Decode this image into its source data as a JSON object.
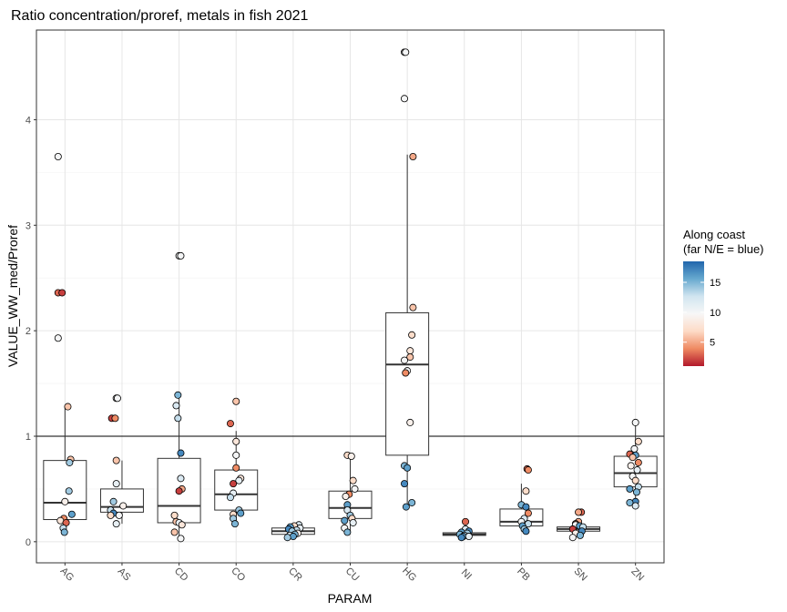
{
  "chart_data": {
    "type": "boxplot",
    "title": "Ratio concentration/proref, metals in fish 2021",
    "xlabel": "PARAM",
    "ylabel": "VALUE_WW_med/Proref",
    "ylim": [
      -0.2,
      4.85
    ],
    "y_ticks": [
      0,
      1,
      2,
      3,
      4
    ],
    "reference_line": 1,
    "grid": true,
    "categories": [
      "AG",
      "AS",
      "CD",
      "CO",
      "CR",
      "CU",
      "HG",
      "NI",
      "PB",
      "SN",
      "ZN"
    ],
    "boxes": [
      {
        "param": "AG",
        "q1": 0.21,
        "median": 0.37,
        "q3": 0.77,
        "whisker_low": 0.08,
        "whisker_high": 1.29
      },
      {
        "param": "AS",
        "q1": 0.28,
        "median": 0.33,
        "q3": 0.5,
        "whisker_low": 0.17,
        "whisker_high": 0.77
      },
      {
        "param": "CD",
        "q1": 0.18,
        "median": 0.34,
        "q3": 0.79,
        "whisker_low": 0.03,
        "whisker_high": 1.39
      },
      {
        "param": "CO",
        "q1": 0.3,
        "median": 0.45,
        "q3": 0.68,
        "whisker_low": 0.18,
        "whisker_high": 1.05
      },
      {
        "param": "CR",
        "q1": 0.07,
        "median": 0.1,
        "q3": 0.13,
        "whisker_low": 0.04,
        "whisker_high": 0.16
      },
      {
        "param": "CU",
        "q1": 0.22,
        "median": 0.32,
        "q3": 0.48,
        "whisker_low": 0.09,
        "whisker_high": 0.82
      },
      {
        "param": "HG",
        "q1": 0.82,
        "median": 1.68,
        "q3": 2.17,
        "whisker_low": 0.33,
        "whisker_high": 3.67
      },
      {
        "param": "NI",
        "q1": 0.06,
        "median": 0.07,
        "q3": 0.085,
        "whisker_low": 0.04,
        "whisker_high": 0.1
      },
      {
        "param": "PB",
        "q1": 0.15,
        "median": 0.19,
        "q3": 0.31,
        "whisker_low": 0.1,
        "whisker_high": 0.55
      },
      {
        "param": "SN",
        "q1": 0.1,
        "median": 0.12,
        "q3": 0.14,
        "whisker_low": 0.07,
        "whisker_high": 0.17
      },
      {
        "param": "ZN",
        "q1": 0.52,
        "median": 0.65,
        "q3": 0.81,
        "whisker_low": 0.34,
        "whisker_high": 1.13
      }
    ],
    "points": [
      {
        "param": "AG",
        "y": 3.65,
        "along_coast": 10,
        "jitter": -0.12
      },
      {
        "param": "AG",
        "y": 2.36,
        "along_coast": 3,
        "jitter": -0.12
      },
      {
        "param": "AG",
        "y": 2.36,
        "along_coast": 2,
        "jitter": -0.05
      },
      {
        "param": "AG",
        "y": 1.93,
        "along_coast": 10,
        "jitter": -0.12
      },
      {
        "param": "AG",
        "y": 1.28,
        "along_coast": 6,
        "jitter": 0.05
      },
      {
        "param": "AG",
        "y": 0.78,
        "along_coast": 6,
        "jitter": 0.1
      },
      {
        "param": "AG",
        "y": 0.75,
        "along_coast": 14,
        "jitter": 0.08
      },
      {
        "param": "AG",
        "y": 0.48,
        "along_coast": 14,
        "jitter": 0.07
      },
      {
        "param": "AG",
        "y": 0.38,
        "along_coast": 9,
        "jitter": 0.0
      },
      {
        "param": "AG",
        "y": 0.26,
        "along_coast": 16,
        "jitter": 0.12
      },
      {
        "param": "AG",
        "y": 0.22,
        "along_coast": 4,
        "jitter": -0.02
      },
      {
        "param": "AG",
        "y": 0.2,
        "along_coast": 8,
        "jitter": -0.08
      },
      {
        "param": "AG",
        "y": 0.18,
        "along_coast": 3,
        "jitter": 0.02
      },
      {
        "param": "AG",
        "y": 0.13,
        "along_coast": 13,
        "jitter": -0.03
      },
      {
        "param": "AG",
        "y": 0.09,
        "along_coast": 15,
        "jitter": -0.01
      },
      {
        "param": "AS",
        "y": 1.36,
        "along_coast": 10,
        "jitter": -0.1
      },
      {
        "param": "AS",
        "y": 1.36,
        "along_coast": 10,
        "jitter": -0.08
      },
      {
        "param": "AS",
        "y": 1.17,
        "along_coast": 2,
        "jitter": -0.18
      },
      {
        "param": "AS",
        "y": 1.17,
        "along_coast": 4,
        "jitter": -0.12
      },
      {
        "param": "AS",
        "y": 0.77,
        "along_coast": 6,
        "jitter": -0.1
      },
      {
        "param": "AS",
        "y": 0.55,
        "along_coast": 11,
        "jitter": -0.1
      },
      {
        "param": "AS",
        "y": 0.38,
        "along_coast": 14,
        "jitter": -0.15
      },
      {
        "param": "AS",
        "y": 0.34,
        "along_coast": 9,
        "jitter": 0.02
      },
      {
        "param": "AS",
        "y": 0.3,
        "along_coast": 13,
        "jitter": -0.2
      },
      {
        "param": "AS",
        "y": 0.27,
        "along_coast": 17,
        "jitter": -0.15
      },
      {
        "param": "AS",
        "y": 0.25,
        "along_coast": 10,
        "jitter": -0.05
      },
      {
        "param": "AS",
        "y": 0.25,
        "along_coast": 7,
        "jitter": -0.2
      },
      {
        "param": "AS",
        "y": 0.17,
        "along_coast": 11,
        "jitter": -0.1
      },
      {
        "param": "CD",
        "y": 2.71,
        "along_coast": 10,
        "jitter": 0.0
      },
      {
        "param": "CD",
        "y": 2.71,
        "along_coast": 10,
        "jitter": 0.03
      },
      {
        "param": "CD",
        "y": 1.39,
        "along_coast": 15,
        "jitter": -0.02
      },
      {
        "param": "CD",
        "y": 1.29,
        "along_coast": 12,
        "jitter": -0.05
      },
      {
        "param": "CD",
        "y": 1.17,
        "along_coast": 13,
        "jitter": -0.02
      },
      {
        "param": "CD",
        "y": 0.84,
        "along_coast": 17,
        "jitter": 0.03
      },
      {
        "param": "CD",
        "y": 0.6,
        "along_coast": 12,
        "jitter": 0.03
      },
      {
        "param": "CD",
        "y": 0.5,
        "along_coast": 5,
        "jitter": 0.05
      },
      {
        "param": "CD",
        "y": 0.48,
        "along_coast": 2,
        "jitter": 0.0
      },
      {
        "param": "CD",
        "y": 0.25,
        "along_coast": 7,
        "jitter": -0.08
      },
      {
        "param": "CD",
        "y": 0.19,
        "along_coast": 6,
        "jitter": -0.05
      },
      {
        "param": "CD",
        "y": 0.18,
        "along_coast": 11,
        "jitter": 0.0
      },
      {
        "param": "CD",
        "y": 0.16,
        "along_coast": 8,
        "jitter": 0.05
      },
      {
        "param": "CD",
        "y": 0.09,
        "along_coast": 6,
        "jitter": -0.08
      },
      {
        "param": "CD",
        "y": 0.03,
        "along_coast": 10,
        "jitter": 0.03
      },
      {
        "param": "CO",
        "y": 1.33,
        "along_coast": 6,
        "jitter": 0.0
      },
      {
        "param": "CO",
        "y": 1.12,
        "along_coast": 3,
        "jitter": -0.1
      },
      {
        "param": "CO",
        "y": 0.95,
        "along_coast": 8,
        "jitter": 0.0
      },
      {
        "param": "CO",
        "y": 0.82,
        "along_coast": 10,
        "jitter": 0.0
      },
      {
        "param": "CO",
        "y": 0.7,
        "along_coast": 4,
        "jitter": 0.0
      },
      {
        "param": "CO",
        "y": 0.6,
        "along_coast": 8,
        "jitter": 0.08
      },
      {
        "param": "CO",
        "y": 0.58,
        "along_coast": 11,
        "jitter": 0.05
      },
      {
        "param": "CO",
        "y": 0.55,
        "along_coast": 2,
        "jitter": -0.05
      },
      {
        "param": "CO",
        "y": 0.46,
        "along_coast": 11,
        "jitter": -0.05
      },
      {
        "param": "CO",
        "y": 0.42,
        "along_coast": 13,
        "jitter": -0.1
      },
      {
        "param": "CO",
        "y": 0.3,
        "along_coast": 14,
        "jitter": 0.05
      },
      {
        "param": "CO",
        "y": 0.27,
        "along_coast": 16,
        "jitter": 0.08
      },
      {
        "param": "CO",
        "y": 0.26,
        "along_coast": 7,
        "jitter": -0.05
      },
      {
        "param": "CO",
        "y": 0.22,
        "along_coast": 14,
        "jitter": -0.05
      },
      {
        "param": "CO",
        "y": 0.17,
        "along_coast": 15,
        "jitter": -0.02
      },
      {
        "param": "CR",
        "y": 0.16,
        "along_coast": 12,
        "jitter": 0.1
      },
      {
        "param": "CR",
        "y": 0.15,
        "along_coast": 7,
        "jitter": 0.02
      },
      {
        "param": "CR",
        "y": 0.14,
        "along_coast": 16,
        "jitter": -0.05
      },
      {
        "param": "CR",
        "y": 0.13,
        "along_coast": 11,
        "jitter": 0.12
      },
      {
        "param": "CR",
        "y": 0.12,
        "along_coast": 17,
        "jitter": -0.08
      },
      {
        "param": "CR",
        "y": 0.11,
        "along_coast": 13,
        "jitter": 0.06
      },
      {
        "param": "CR",
        "y": 0.1,
        "along_coast": 14,
        "jitter": -0.02
      },
      {
        "param": "CR",
        "y": 0.08,
        "along_coast": 9,
        "jitter": 0.08
      },
      {
        "param": "CR",
        "y": 0.07,
        "along_coast": 15,
        "jitter": 0.03
      },
      {
        "param": "CR",
        "y": 0.06,
        "along_coast": 12,
        "jitter": -0.06
      },
      {
        "param": "CR",
        "y": 0.05,
        "along_coast": 16,
        "jitter": 0.0
      },
      {
        "param": "CR",
        "y": 0.04,
        "along_coast": 14,
        "jitter": -0.1
      },
      {
        "param": "CU",
        "y": 0.82,
        "along_coast": 7,
        "jitter": -0.05
      },
      {
        "param": "CU",
        "y": 0.81,
        "along_coast": 9,
        "jitter": 0.02
      },
      {
        "param": "CU",
        "y": 0.58,
        "along_coast": 7,
        "jitter": 0.05
      },
      {
        "param": "CU",
        "y": 0.5,
        "along_coast": 10,
        "jitter": 0.08
      },
      {
        "param": "CU",
        "y": 0.45,
        "along_coast": 4,
        "jitter": -0.02
      },
      {
        "param": "CU",
        "y": 0.43,
        "along_coast": 9,
        "jitter": -0.08
      },
      {
        "param": "CU",
        "y": 0.35,
        "along_coast": 16,
        "jitter": -0.05
      },
      {
        "param": "CU",
        "y": 0.3,
        "along_coast": 12,
        "jitter": -0.05
      },
      {
        "param": "CU",
        "y": 0.25,
        "along_coast": 14,
        "jitter": 0.0
      },
      {
        "param": "CU",
        "y": 0.22,
        "along_coast": 7,
        "jitter": 0.03
      },
      {
        "param": "CU",
        "y": 0.2,
        "along_coast": 16,
        "jitter": -0.1
      },
      {
        "param": "CU",
        "y": 0.18,
        "along_coast": 11,
        "jitter": 0.05
      },
      {
        "param": "CU",
        "y": 0.13,
        "along_coast": 10,
        "jitter": -0.1
      },
      {
        "param": "CU",
        "y": 0.09,
        "along_coast": 15,
        "jitter": -0.05
      },
      {
        "param": "HG",
        "y": 4.64,
        "along_coast": 10,
        "jitter": -0.05
      },
      {
        "param": "HG",
        "y": 4.64,
        "along_coast": 10,
        "jitter": -0.03
      },
      {
        "param": "HG",
        "y": 4.2,
        "along_coast": 10,
        "jitter": -0.05
      },
      {
        "param": "HG",
        "y": 3.65,
        "along_coast": 5,
        "jitter": 0.1
      },
      {
        "param": "HG",
        "y": 2.22,
        "along_coast": 6,
        "jitter": 0.1
      },
      {
        "param": "HG",
        "y": 1.96,
        "along_coast": 7,
        "jitter": 0.08
      },
      {
        "param": "HG",
        "y": 1.81,
        "along_coast": 8,
        "jitter": 0.05
      },
      {
        "param": "HG",
        "y": 1.75,
        "along_coast": 6,
        "jitter": 0.05
      },
      {
        "param": "HG",
        "y": 1.72,
        "along_coast": 10,
        "jitter": -0.05
      },
      {
        "param": "HG",
        "y": 1.62,
        "along_coast": 10,
        "jitter": 0.0
      },
      {
        "param": "HG",
        "y": 1.6,
        "along_coast": 4,
        "jitter": -0.03
      },
      {
        "param": "HG",
        "y": 1.13,
        "along_coast": 9,
        "jitter": 0.05
      },
      {
        "param": "HG",
        "y": 0.72,
        "along_coast": 15,
        "jitter": -0.05
      },
      {
        "param": "HG",
        "y": 0.7,
        "along_coast": 16,
        "jitter": 0.0
      },
      {
        "param": "HG",
        "y": 0.55,
        "along_coast": 17,
        "jitter": -0.05
      },
      {
        "param": "HG",
        "y": 0.37,
        "along_coast": 15,
        "jitter": 0.08
      },
      {
        "param": "HG",
        "y": 0.33,
        "along_coast": 16,
        "jitter": -0.02
      },
      {
        "param": "NI",
        "y": 0.19,
        "along_coast": 3,
        "jitter": 0.02
      },
      {
        "param": "NI",
        "y": 0.12,
        "along_coast": 12,
        "jitter": 0.02
      },
      {
        "param": "NI",
        "y": 0.1,
        "along_coast": 17,
        "jitter": 0.08
      },
      {
        "param": "NI",
        "y": 0.09,
        "along_coast": 16,
        "jitter": -0.05
      },
      {
        "param": "NI",
        "y": 0.08,
        "along_coast": 14,
        "jitter": 0.05
      },
      {
        "param": "NI",
        "y": 0.07,
        "along_coast": 15,
        "jitter": -0.08
      },
      {
        "param": "NI",
        "y": 0.06,
        "along_coast": 13,
        "jitter": 0.0
      },
      {
        "param": "NI",
        "y": 0.05,
        "along_coast": 16,
        "jitter": -0.02
      },
      {
        "param": "NI",
        "y": 0.05,
        "along_coast": 11,
        "jitter": 0.08
      },
      {
        "param": "NI",
        "y": 0.04,
        "along_coast": 17,
        "jitter": -0.05
      },
      {
        "param": "PB",
        "y": 0.69,
        "along_coast": 3,
        "jitter": 0.1
      },
      {
        "param": "PB",
        "y": 0.68,
        "along_coast": 4,
        "jitter": 0.12
      },
      {
        "param": "PB",
        "y": 0.48,
        "along_coast": 7,
        "jitter": 0.08
      },
      {
        "param": "PB",
        "y": 0.35,
        "along_coast": 15,
        "jitter": 0.0
      },
      {
        "param": "PB",
        "y": 0.33,
        "along_coast": 17,
        "jitter": 0.08
      },
      {
        "param": "PB",
        "y": 0.27,
        "along_coast": 4,
        "jitter": 0.12
      },
      {
        "param": "PB",
        "y": 0.22,
        "along_coast": 12,
        "jitter": 0.05
      },
      {
        "param": "PB",
        "y": 0.19,
        "along_coast": 10,
        "jitter": 0.0
      },
      {
        "param": "PB",
        "y": 0.17,
        "along_coast": 13,
        "jitter": 0.12
      },
      {
        "param": "PB",
        "y": 0.15,
        "along_coast": 16,
        "jitter": 0.02
      },
      {
        "param": "PB",
        "y": 0.12,
        "along_coast": 14,
        "jitter": 0.05
      },
      {
        "param": "PB",
        "y": 0.1,
        "along_coast": 17,
        "jitter": 0.08
      },
      {
        "param": "SN",
        "y": 0.28,
        "along_coast": 3,
        "jitter": 0.05
      },
      {
        "param": "SN",
        "y": 0.28,
        "along_coast": 5,
        "jitter": 0.0
      },
      {
        "param": "SN",
        "y": 0.19,
        "along_coast": 5,
        "jitter": 0.0
      },
      {
        "param": "SN",
        "y": 0.17,
        "along_coast": 4,
        "jitter": -0.05
      },
      {
        "param": "SN",
        "y": 0.16,
        "along_coast": 10,
        "jitter": -0.05
      },
      {
        "param": "SN",
        "y": 0.15,
        "along_coast": 16,
        "jitter": 0.02
      },
      {
        "param": "SN",
        "y": 0.14,
        "along_coast": 13,
        "jitter": 0.08
      },
      {
        "param": "SN",
        "y": 0.12,
        "along_coast": 2,
        "jitter": -0.1
      },
      {
        "param": "SN",
        "y": 0.1,
        "along_coast": 17,
        "jitter": 0.06
      },
      {
        "param": "SN",
        "y": 0.08,
        "along_coast": 9,
        "jitter": -0.05
      },
      {
        "param": "SN",
        "y": 0.06,
        "along_coast": 15,
        "jitter": 0.03
      },
      {
        "param": "SN",
        "y": 0.04,
        "along_coast": 10,
        "jitter": -0.1
      },
      {
        "param": "ZN",
        "y": 1.13,
        "along_coast": 10,
        "jitter": 0.0
      },
      {
        "param": "ZN",
        "y": 0.95,
        "along_coast": 7,
        "jitter": 0.05
      },
      {
        "param": "ZN",
        "y": 0.88,
        "along_coast": 10,
        "jitter": -0.02
      },
      {
        "param": "ZN",
        "y": 0.83,
        "along_coast": 3,
        "jitter": -0.1
      },
      {
        "param": "ZN",
        "y": 0.82,
        "along_coast": 16,
        "jitter": 0.0
      },
      {
        "param": "ZN",
        "y": 0.8,
        "along_coast": 6,
        "jitter": -0.05
      },
      {
        "param": "ZN",
        "y": 0.75,
        "along_coast": 4,
        "jitter": 0.05
      },
      {
        "param": "ZN",
        "y": 0.72,
        "along_coast": 9,
        "jitter": -0.08
      },
      {
        "param": "ZN",
        "y": 0.68,
        "along_coast": 11,
        "jitter": 0.03
      },
      {
        "param": "ZN",
        "y": 0.62,
        "along_coast": 10,
        "jitter": -0.05
      },
      {
        "param": "ZN",
        "y": 0.58,
        "along_coast": 7,
        "jitter": 0.0
      },
      {
        "param": "ZN",
        "y": 0.52,
        "along_coast": 13,
        "jitter": 0.05
      },
      {
        "param": "ZN",
        "y": 0.5,
        "along_coast": 16,
        "jitter": -0.1
      },
      {
        "param": "ZN",
        "y": 0.47,
        "along_coast": 15,
        "jitter": 0.02
      },
      {
        "param": "ZN",
        "y": 0.38,
        "along_coast": 17,
        "jitter": 0.0
      },
      {
        "param": "ZN",
        "y": 0.37,
        "along_coast": 15,
        "jitter": -0.1
      },
      {
        "param": "ZN",
        "y": 0.34,
        "along_coast": 12,
        "jitter": 0.0
      }
    ],
    "legend": {
      "title_line1": "Along coast",
      "title_line2": "(far N/E = blue)",
      "range": [
        1,
        18.5
      ],
      "ticks": [
        5,
        10,
        15
      ],
      "colors": [
        "#b2182b",
        "#ef8a62",
        "#fddbc7",
        "#f7f7f7",
        "#d1e5f0",
        "#67a9cf",
        "#2166ac"
      ],
      "placement": "right"
    }
  }
}
